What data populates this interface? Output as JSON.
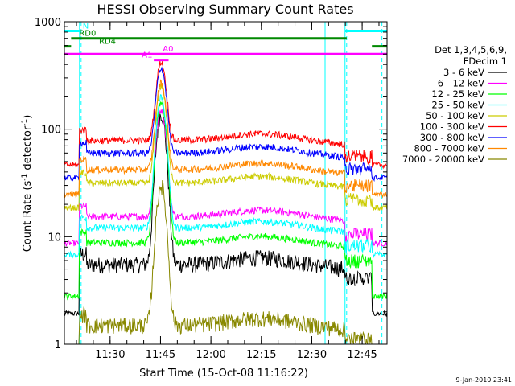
{
  "chart_data": {
    "type": "line",
    "title": "HESSI Observing Summary Count Rates",
    "xlabel": "Start Time (15-Oct-08 11:16:22)",
    "ylabel_main": "Count Rate (s",
    "ylabel_sup1": "-1",
    "ylabel_mid": " detector",
    "ylabel_sup2": "-1",
    "ylabel_end": ")",
    "y_scale": "log",
    "ylim": [
      1,
      1000
    ],
    "xlim_minutes": [
      0,
      96
    ],
    "x_ticks": [
      {
        "label": "11:30",
        "minute": 13.6
      },
      {
        "label": "11:45",
        "minute": 28.6
      },
      {
        "label": "12:00",
        "minute": 43.6
      },
      {
        "label": "12:15",
        "minute": 58.6
      },
      {
        "label": "12:30",
        "minute": 73.6
      },
      {
        "label": "12:45",
        "minute": 88.6
      }
    ],
    "y_ticks": [
      {
        "label": "1",
        "value": 1
      },
      {
        "label": "10",
        "value": 10
      },
      {
        "label": "100",
        "value": 100
      },
      {
        "label": "1000",
        "value": 1000
      }
    ],
    "legend_header": [
      "Det 1,3,4,5,6,9,",
      "FDecim 1"
    ],
    "legend_position": "right",
    "series": [
      {
        "name": "3 - 6 keV",
        "color": "#000000",
        "base": 5.5,
        "peak": 140,
        "hump": 1.0
      },
      {
        "name": "6 - 12 keV",
        "color": "#ff00ff",
        "base": 14,
        "peak": 150,
        "hump": 1.1
      },
      {
        "name": "12 - 25 keV",
        "color": "#00ff00",
        "base": 8,
        "peak": 180,
        "hump": 1.1
      },
      {
        "name": "25 - 50 keV",
        "color": "#00ffff",
        "base": 11,
        "peak": 200,
        "hump": 1.1
      },
      {
        "name": "50 - 100 keV",
        "color": "#cccc00",
        "base": 30,
        "peak": 250,
        "hump": 1.05
      },
      {
        "name": "100 - 300 keV",
        "color": "#ff0000",
        "base": 75,
        "peak": 420,
        "hump": 1.05
      },
      {
        "name": "300 - 800 keV",
        "color": "#0000ff",
        "base": 57,
        "peak": 370,
        "hump": 1.05
      },
      {
        "name": "800 - 7000 keV",
        "color": "#ff8800",
        "base": 40,
        "peak": 270,
        "hump": 1.05
      },
      {
        "name": "7000 - 20000 keV",
        "color": "#888800",
        "base": 1.5,
        "peak": 30,
        "hump": 1.0
      }
    ],
    "flare_peak_minute": 28.8,
    "night_intervals_minutes": [
      [
        -10,
        4.5
      ],
      [
        83.5,
        104
      ]
    ],
    "saa_dashed_minutes": [
      4.5,
      83.5,
      94
    ],
    "flags": [
      {
        "label": "N",
        "color": "#00ffff",
        "segments": [
          [
            -10,
            4.5
          ],
          [
            83.5,
            104
          ]
        ],
        "level": 820
      },
      {
        "label": "RD0",
        "color": "#008800",
        "segments": [
          [
            2,
            84
          ]
        ],
        "level": 700
      },
      {
        "label": "RD4",
        "color": "#008800",
        "segments": [
          [
            -10,
            2
          ],
          [
            91.5,
            104
          ]
        ],
        "level": 590
      },
      {
        "label": "A0",
        "color": "#ff00ff",
        "segments": [
          [
            -10,
            104
          ]
        ],
        "level": 500
      },
      {
        "label": "A1",
        "color": "#ff00ff",
        "segments": [
          [
            26.6,
            31
          ]
        ],
        "level": 440
      }
    ],
    "footer_stamp": "9-Jan-2010 23:41"
  }
}
